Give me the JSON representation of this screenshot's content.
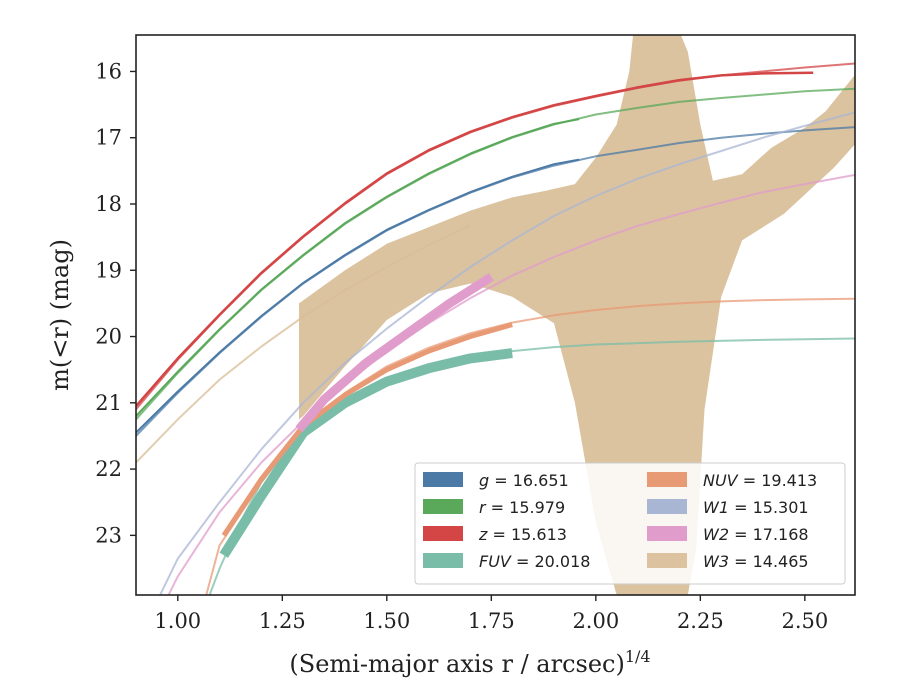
{
  "chart_data": {
    "type": "line",
    "xlabel": "(Semi-major axis r / arcsec)",
    "xlabel_sup": "1/4",
    "ylabel": "m(<r) (mag)",
    "xlim": [
      0.9,
      2.62
    ],
    "ylim": [
      23.9,
      15.45
    ],
    "y_inverted": true,
    "x_ticks": [
      1.0,
      1.25,
      1.5,
      1.75,
      2.0,
      2.25,
      2.5
    ],
    "x_tick_labels": [
      "1.00",
      "1.25",
      "1.50",
      "1.75",
      "2.00",
      "2.25",
      "2.50"
    ],
    "y_ticks": [
      16,
      17,
      18,
      19,
      20,
      21,
      22,
      23
    ],
    "y_tick_labels": [
      "16",
      "17",
      "18",
      "19",
      "20",
      "21",
      "22",
      "23"
    ],
    "grid": false,
    "legend_position": "lower-right",
    "series": [
      {
        "name": "g = 16.651",
        "legend_var": "g",
        "legend_value": "16.651",
        "color": "#4c7aa6",
        "model": [
          [
            0.9,
            21.5
          ],
          [
            1.0,
            20.85
          ],
          [
            1.1,
            20.25
          ],
          [
            1.2,
            19.7
          ],
          [
            1.3,
            19.2
          ],
          [
            1.4,
            18.78
          ],
          [
            1.5,
            18.4
          ],
          [
            1.6,
            18.1
          ],
          [
            1.7,
            17.83
          ],
          [
            1.8,
            17.6
          ],
          [
            1.9,
            17.42
          ],
          [
            2.0,
            17.28
          ],
          [
            2.1,
            17.18
          ],
          [
            2.2,
            17.08
          ],
          [
            2.3,
            17.0
          ],
          [
            2.4,
            16.94
          ],
          [
            2.5,
            16.89
          ],
          [
            2.62,
            16.84
          ]
        ],
        "observed": [
          [
            0.9,
            21.45
          ],
          [
            1.0,
            20.83
          ],
          [
            1.1,
            20.24
          ],
          [
            1.2,
            19.69
          ],
          [
            1.3,
            19.19
          ],
          [
            1.4,
            18.77
          ],
          [
            1.5,
            18.39
          ],
          [
            1.6,
            18.09
          ],
          [
            1.7,
            17.82
          ],
          [
            1.8,
            17.59
          ],
          [
            1.9,
            17.4
          ],
          [
            1.96,
            17.33
          ]
        ],
        "obs_width": 2
      },
      {
        "name": "r = 15.979",
        "legend_var": "r",
        "legend_value": "15.979",
        "color": "#5aa85a",
        "model": [
          [
            0.9,
            21.25
          ],
          [
            1.0,
            20.55
          ],
          [
            1.1,
            19.9
          ],
          [
            1.2,
            19.3
          ],
          [
            1.3,
            18.78
          ],
          [
            1.4,
            18.3
          ],
          [
            1.5,
            17.9
          ],
          [
            1.6,
            17.55
          ],
          [
            1.7,
            17.25
          ],
          [
            1.8,
            17.0
          ],
          [
            1.9,
            16.8
          ],
          [
            2.0,
            16.65
          ],
          [
            2.1,
            16.55
          ],
          [
            2.2,
            16.46
          ],
          [
            2.3,
            16.4
          ],
          [
            2.4,
            16.35
          ],
          [
            2.5,
            16.3
          ],
          [
            2.62,
            16.26
          ]
        ],
        "observed": [
          [
            0.9,
            21.2
          ],
          [
            1.0,
            20.53
          ],
          [
            1.1,
            19.89
          ],
          [
            1.2,
            19.29
          ],
          [
            1.3,
            18.77
          ],
          [
            1.4,
            18.29
          ],
          [
            1.5,
            17.89
          ],
          [
            1.6,
            17.54
          ],
          [
            1.7,
            17.24
          ],
          [
            1.8,
            16.99
          ],
          [
            1.9,
            16.79
          ],
          [
            1.96,
            16.72
          ]
        ],
        "obs_width": 2
      },
      {
        "name": "z = 15.613",
        "legend_var": "z",
        "legend_value": "15.613",
        "color": "#d44545",
        "model": [
          [
            0.9,
            21.1
          ],
          [
            1.0,
            20.35
          ],
          [
            1.1,
            19.68
          ],
          [
            1.2,
            19.05
          ],
          [
            1.3,
            18.5
          ],
          [
            1.4,
            18.0
          ],
          [
            1.5,
            17.55
          ],
          [
            1.6,
            17.2
          ],
          [
            1.7,
            16.92
          ],
          [
            1.8,
            16.7
          ],
          [
            1.9,
            16.52
          ],
          [
            2.0,
            16.38
          ],
          [
            2.1,
            16.25
          ],
          [
            2.2,
            16.14
          ],
          [
            2.3,
            16.06
          ],
          [
            2.4,
            16.0
          ],
          [
            2.5,
            15.94
          ],
          [
            2.62,
            15.88
          ]
        ],
        "observed": [
          [
            0.9,
            21.05
          ],
          [
            1.0,
            20.33
          ],
          [
            1.1,
            19.67
          ],
          [
            1.2,
            19.04
          ],
          [
            1.3,
            18.49
          ],
          [
            1.4,
            17.99
          ],
          [
            1.5,
            17.54
          ],
          [
            1.6,
            17.19
          ],
          [
            1.7,
            16.91
          ],
          [
            1.8,
            16.69
          ],
          [
            1.9,
            16.51
          ],
          [
            2.0,
            16.37
          ],
          [
            2.1,
            16.24
          ],
          [
            2.2,
            16.13
          ],
          [
            2.3,
            16.06
          ],
          [
            2.4,
            16.03
          ],
          [
            2.52,
            16.02
          ]
        ],
        "obs_width": 2.5
      },
      {
        "name": "FUV = 20.018",
        "legend_var": "FUV",
        "legend_value": "20.018",
        "color": "#79bda8",
        "model": [
          [
            1.07,
            24.0
          ],
          [
            1.1,
            23.5
          ],
          [
            1.15,
            22.8
          ],
          [
            1.2,
            22.2
          ],
          [
            1.3,
            21.4
          ],
          [
            1.4,
            20.95
          ],
          [
            1.5,
            20.62
          ],
          [
            1.6,
            20.42
          ],
          [
            1.7,
            20.3
          ],
          [
            1.8,
            20.22
          ],
          [
            1.9,
            20.16
          ],
          [
            2.0,
            20.12
          ],
          [
            2.2,
            20.08
          ],
          [
            2.4,
            20.05
          ],
          [
            2.62,
            20.03
          ]
        ],
        "observed": [
          [
            1.11,
            23.3
          ],
          [
            1.2,
            22.4
          ],
          [
            1.3,
            21.45
          ],
          [
            1.4,
            21.0
          ],
          [
            1.5,
            20.68
          ],
          [
            1.6,
            20.48
          ],
          [
            1.7,
            20.33
          ],
          [
            1.8,
            20.25
          ]
        ],
        "obs_width": 10
      },
      {
        "name": "NUV = 19.413",
        "legend_var": "NUV",
        "legend_value": "19.413",
        "color": "#e89a75",
        "model": [
          [
            1.0,
            25.5
          ],
          [
            1.1,
            23.15
          ],
          [
            1.2,
            22.2
          ],
          [
            1.3,
            21.35
          ],
          [
            1.4,
            20.85
          ],
          [
            1.5,
            20.45
          ],
          [
            1.6,
            20.17
          ],
          [
            1.7,
            19.95
          ],
          [
            1.8,
            19.79
          ],
          [
            1.9,
            19.68
          ],
          [
            2.0,
            19.6
          ],
          [
            2.1,
            19.54
          ],
          [
            2.2,
            19.5
          ],
          [
            2.3,
            19.47
          ],
          [
            2.4,
            19.45
          ],
          [
            2.5,
            19.44
          ],
          [
            2.62,
            19.43
          ]
        ],
        "observed": [
          [
            1.11,
            23.0
          ],
          [
            1.2,
            22.15
          ],
          [
            1.3,
            21.35
          ],
          [
            1.4,
            20.88
          ],
          [
            1.5,
            20.5
          ],
          [
            1.6,
            20.22
          ],
          [
            1.7,
            20.0
          ],
          [
            1.8,
            19.82
          ]
        ],
        "obs_width": 5
      },
      {
        "name": "W1 = 15.301",
        "legend_var": "W1",
        "legend_value": "15.301",
        "color": "#a9b6d3",
        "model": [
          [
            0.95,
            24.0
          ],
          [
            1.0,
            23.35
          ],
          [
            1.1,
            22.5
          ],
          [
            1.2,
            21.7
          ],
          [
            1.3,
            21.0
          ],
          [
            1.4,
            20.4
          ],
          [
            1.5,
            19.88
          ],
          [
            1.6,
            19.4
          ],
          [
            1.7,
            18.95
          ],
          [
            1.8,
            18.55
          ],
          [
            1.9,
            18.18
          ],
          [
            2.0,
            17.88
          ],
          [
            2.1,
            17.62
          ],
          [
            2.2,
            17.4
          ],
          [
            2.3,
            17.2
          ],
          [
            2.4,
            17.0
          ],
          [
            2.5,
            16.82
          ],
          [
            2.62,
            16.62
          ]
        ],
        "observed": [],
        "obs_width": 2
      },
      {
        "name": "W2 = 17.168",
        "legend_var": "W2",
        "legend_value": "17.168",
        "color": "#e09ccb",
        "model": [
          [
            0.97,
            24.0
          ],
          [
            1.0,
            23.62
          ],
          [
            1.1,
            22.65
          ],
          [
            1.2,
            21.9
          ],
          [
            1.3,
            21.28
          ],
          [
            1.4,
            20.72
          ],
          [
            1.5,
            20.22
          ],
          [
            1.6,
            19.8
          ],
          [
            1.7,
            19.42
          ],
          [
            1.8,
            19.08
          ],
          [
            1.9,
            18.8
          ],
          [
            2.0,
            18.55
          ],
          [
            2.1,
            18.33
          ],
          [
            2.2,
            18.15
          ],
          [
            2.3,
            17.98
          ],
          [
            2.4,
            17.82
          ],
          [
            2.5,
            17.7
          ],
          [
            2.62,
            17.56
          ]
        ],
        "observed": [
          [
            1.29,
            21.4
          ],
          [
            1.35,
            20.95
          ],
          [
            1.45,
            20.4
          ],
          [
            1.55,
            19.95
          ],
          [
            1.65,
            19.5
          ],
          [
            1.75,
            19.1
          ]
        ],
        "obs_width": 9
      },
      {
        "name": "W3 = 14.465",
        "legend_var": "W3",
        "legend_value": "14.465",
        "color": "#d8bc96",
        "model": [
          [
            0.9,
            21.9
          ],
          [
            1.0,
            21.25
          ],
          [
            1.1,
            20.65
          ],
          [
            1.2,
            20.15
          ],
          [
            1.3,
            19.7
          ],
          [
            1.4,
            19.3
          ],
          [
            1.5,
            18.95
          ],
          [
            1.6,
            18.62
          ],
          [
            1.7,
            18.32
          ]
        ],
        "band_upper": [
          [
            1.29,
            19.5
          ],
          [
            1.4,
            19.0
          ],
          [
            1.5,
            18.6
          ],
          [
            1.6,
            18.35
          ],
          [
            1.7,
            18.1
          ],
          [
            1.8,
            17.9
          ],
          [
            1.88,
            17.8
          ],
          [
            1.95,
            17.7
          ],
          [
            2.0,
            17.3
          ],
          [
            2.05,
            16.8
          ],
          [
            2.08,
            16.0
          ],
          [
            2.09,
            15.4
          ],
          [
            2.2,
            15.4
          ],
          [
            2.22,
            15.7
          ],
          [
            2.25,
            16.8
          ],
          [
            2.28,
            17.65
          ],
          [
            2.35,
            17.55
          ],
          [
            2.42,
            17.15
          ],
          [
            2.5,
            16.85
          ],
          [
            2.55,
            16.6
          ],
          [
            2.62,
            16.05
          ]
        ],
        "band_lower": [
          [
            2.62,
            17.1
          ],
          [
            2.57,
            17.45
          ],
          [
            2.45,
            18.15
          ],
          [
            2.35,
            18.55
          ],
          [
            2.3,
            19.4
          ],
          [
            2.26,
            21.1
          ],
          [
            2.24,
            23.2
          ],
          [
            2.22,
            23.9
          ],
          [
            2.05,
            23.9
          ],
          [
            2.0,
            22.8
          ],
          [
            1.95,
            21.0
          ],
          [
            1.9,
            19.8
          ],
          [
            1.8,
            19.4
          ],
          [
            1.7,
            19.2
          ],
          [
            1.6,
            19.35
          ],
          [
            1.5,
            19.75
          ],
          [
            1.4,
            20.45
          ],
          [
            1.3,
            21.2
          ],
          [
            1.29,
            21.25
          ]
        ],
        "observed": []
      }
    ]
  }
}
